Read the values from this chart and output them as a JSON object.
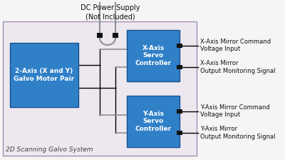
{
  "bg_outer": "#f5f5f5",
  "bg_system": "#ede8f0",
  "bg_system_border": "#a090b0",
  "block_color": "#3080c8",
  "block_text_color": "#ffffff",
  "block_edge_color": "#1a5090",
  "title_text": "DC Power Supply\n(Not Included)",
  "system_label": "2D Scanning Galvo System",
  "motor_block_label": "2-Axis (X and Y)\nGalvo Motor Pair",
  "x_ctrl_label": "X-Axis\nServo\nController",
  "y_ctrl_label": "Y-Axis\nServo\nController",
  "connector_color": "#909090",
  "line_color": "#000000",
  "sq_color": "#111111",
  "fontsize_block": 6.5,
  "fontsize_label": 6.0,
  "fontsize_system": 6.5,
  "fontsize_title": 7.0,
  "right_labels": [
    "X-Axis Mirror Command\nVoltage Input",
    "X-Axis Mirror\nOutput Monitoring Signal",
    "Y-Axis Mirror Command\nVoltage Input",
    "Y-Axis Mirror\nOutput Monitoring Signal"
  ]
}
